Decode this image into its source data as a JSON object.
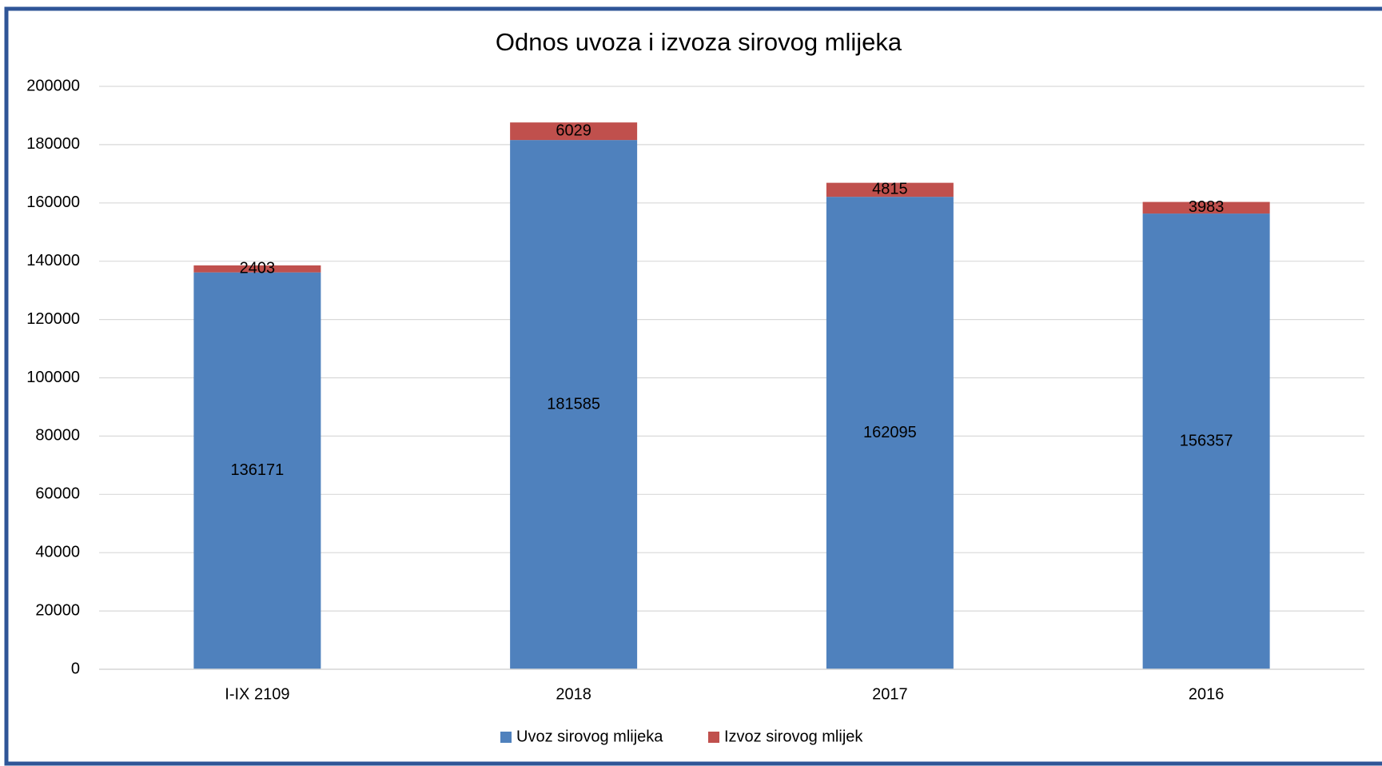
{
  "chart_data": {
    "type": "bar",
    "stacked": true,
    "title": "Odnos uvoza i izvoza sirovog mlijeka",
    "categories": [
      "I-IX 2109",
      "2018",
      "2017",
      "2016"
    ],
    "series": [
      {
        "name": "Uvoz sirovog mlijeka",
        "color": "#4f81bd",
        "values": [
          136171,
          181585,
          162095,
          156357
        ]
      },
      {
        "name": "Izvoz sirovog mlijek",
        "color": "#c0504d",
        "values": [
          2403,
          6029,
          4815,
          3983
        ]
      }
    ],
    "ylim": [
      0,
      200000
    ],
    "yticks": [
      0,
      20000,
      40000,
      60000,
      80000,
      100000,
      120000,
      140000,
      160000,
      180000,
      200000
    ],
    "grid": true,
    "legend": "bottom"
  }
}
